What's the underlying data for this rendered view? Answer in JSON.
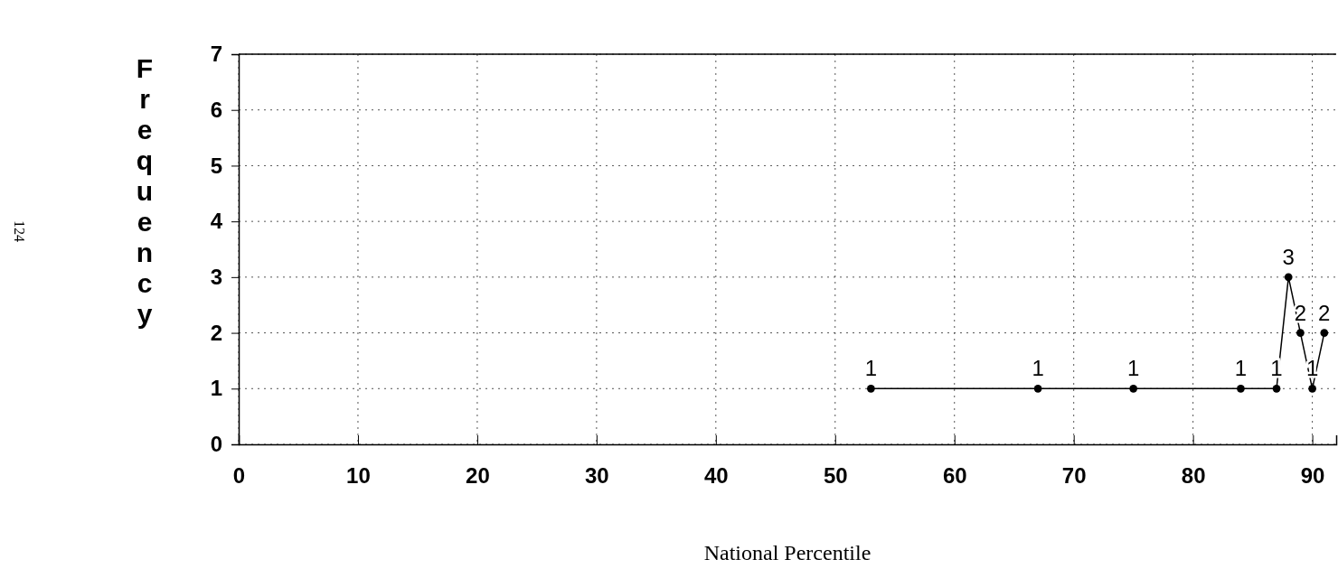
{
  "chart_data": {
    "type": "line",
    "xlabel": "National Percentile",
    "ylabel": "Frequency",
    "x": [
      53,
      67,
      75,
      84,
      87,
      88,
      89,
      90,
      91
    ],
    "values": [
      1,
      1,
      1,
      1,
      1,
      3,
      2,
      1,
      2
    ],
    "color": "#000000",
    "xlim": [
      0,
      92
    ],
    "ylim": [
      0,
      7
    ],
    "xticks": [
      0,
      10,
      20,
      30,
      40,
      50,
      60,
      70,
      80,
      90
    ],
    "yticks": [
      0,
      1,
      2,
      3,
      4,
      5,
      6,
      7
    ],
    "grid": true,
    "marker": "circle",
    "data_labels": true,
    "annotations": [
      "124"
    ]
  }
}
